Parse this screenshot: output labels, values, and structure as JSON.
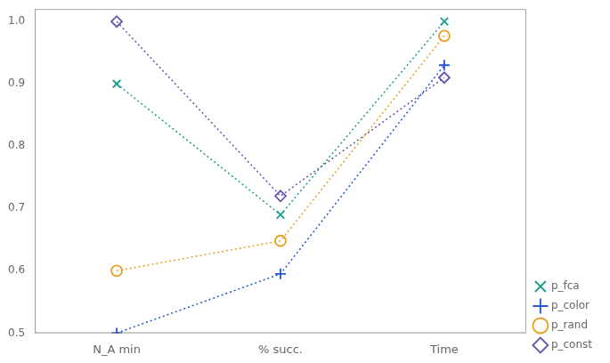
{
  "chart_data": {
    "type": "line",
    "categories": [
      "N_A min",
      "% succ.",
      "Time"
    ],
    "series": [
      {
        "name": "p_fca",
        "color": "#1a9e8c",
        "values": [
          0.9,
          0.69,
          1.0
        ],
        "marker": "x",
        "line_style": "dotted"
      },
      {
        "name": "p_color",
        "color": "#2255cc",
        "values": [
          0.5,
          0.595,
          0.93
        ],
        "marker": "+",
        "line_style": "dotted"
      },
      {
        "name": "p_rand",
        "color": "#e8a020",
        "values": [
          0.6,
          0.648,
          0.977
        ],
        "marker": "o",
        "line_style": "dotted"
      },
      {
        "name": "p_const",
        "color": "#6655aa",
        "values": [
          1.0,
          0.72,
          0.91
        ],
        "marker": "d",
        "line_style": "dotted"
      }
    ],
    "ylim": [
      0.5,
      1.02
    ],
    "yticks": [
      0.5,
      0.6,
      0.7,
      0.8,
      0.9,
      {
        "value": 1.0,
        "label": "1.0"
      }
    ],
    "grid": false,
    "legend": "lower right"
  }
}
